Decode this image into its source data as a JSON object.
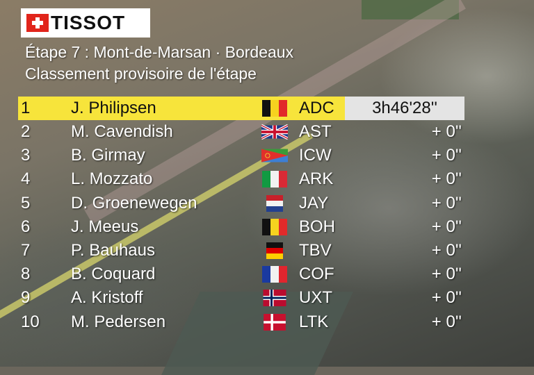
{
  "logo": {
    "text": "TISSOT"
  },
  "header": {
    "stage": "Étape 7 : Mont-de-Marsan · Bordeaux",
    "subtitle": "Classement provisoire de l'étape"
  },
  "rows": [
    {
      "rank": "1",
      "name": "J. Philipsen",
      "flag": "belgium-flag-icon",
      "team": "ADC",
      "time": "3h46'28''"
    },
    {
      "rank": "2",
      "name": "M. Cavendish",
      "flag": "uk-flag-icon",
      "team": "AST",
      "time": "+ 0''"
    },
    {
      "rank": "3",
      "name": "B. Girmay",
      "flag": "eritrea-flag-icon",
      "team": "ICW",
      "time": "+ 0''"
    },
    {
      "rank": "4",
      "name": "L. Mozzato",
      "flag": "italy-flag-icon",
      "team": "ARK",
      "time": "+ 0''"
    },
    {
      "rank": "5",
      "name": "D. Groenewegen",
      "flag": "netherlands-flag-icon",
      "team": "JAY",
      "time": "+ 0''"
    },
    {
      "rank": "6",
      "name": "J. Meeus",
      "flag": "belgium-flag-icon",
      "team": "BOH",
      "time": "+ 0''"
    },
    {
      "rank": "7",
      "name": "P. Bauhaus",
      "flag": "germany-flag-icon",
      "team": "TBV",
      "time": "+ 0''"
    },
    {
      "rank": "8",
      "name": "B. Coquard",
      "flag": "france-flag-icon",
      "team": "COF",
      "time": "+ 0''"
    },
    {
      "rank": "9",
      "name": "A. Kristoff",
      "flag": "norway-flag-icon",
      "team": "UXT",
      "time": "+ 0''"
    },
    {
      "rank": "10",
      "name": "M. Pedersen",
      "flag": "denmark-flag-icon",
      "team": "LTK",
      "time": "+ 0''"
    }
  ],
  "colors": {
    "leader_highlight": "#f7e43b",
    "leader_time_bg": "#e4e4e4",
    "brand_red": "#e1251b"
  }
}
